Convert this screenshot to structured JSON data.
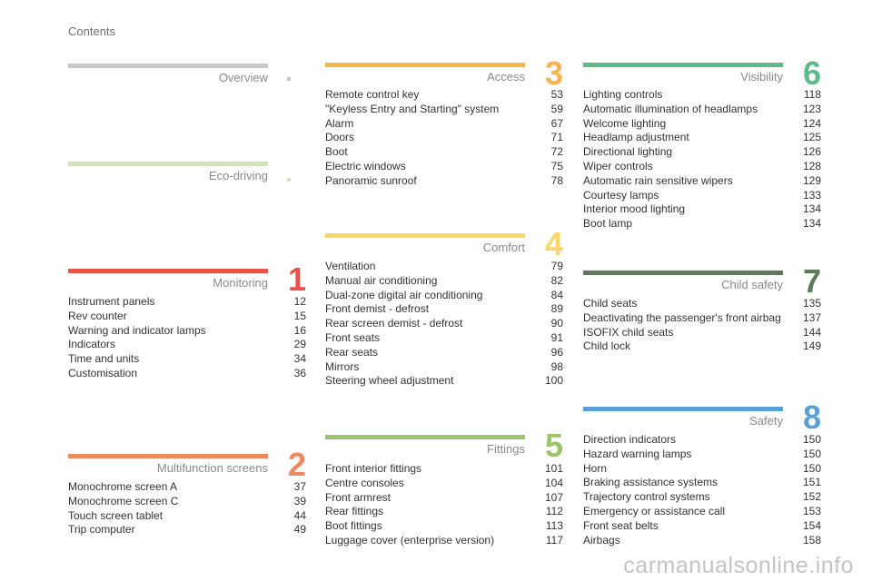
{
  "header": {
    "title": "Contents"
  },
  "sections": [
    {
      "id": "overview",
      "title": "Overview",
      "number": "",
      "color": "#c8c8c8",
      "items": []
    },
    {
      "id": "eco",
      "title": "Eco-driving",
      "number": "",
      "color": "#cfe3b8",
      "items": []
    },
    {
      "id": "monitoring",
      "title": "Monitoring",
      "number": "1",
      "color": "#e8524a",
      "items": [
        {
          "label": "Instrument panels",
          "page": "12"
        },
        {
          "label": "Rev counter",
          "page": "15"
        },
        {
          "label": "Warning and indicator lamps",
          "page": "16"
        },
        {
          "label": "Indicators",
          "page": "29"
        },
        {
          "label": "Time and units",
          "page": "34"
        },
        {
          "label": "Customisation",
          "page": "36"
        }
      ]
    },
    {
      "id": "multifunction",
      "title": "Multifunction screens",
      "number": "2",
      "color": "#ef8a5e",
      "items": [
        {
          "label": "Monochrome screen A",
          "page": "37"
        },
        {
          "label": "Monochrome screen C",
          "page": "39"
        },
        {
          "label": "Touch screen tablet",
          "page": "44"
        },
        {
          "label": "Trip computer",
          "page": "49"
        }
      ]
    },
    {
      "id": "access",
      "title": "Access",
      "number": "3",
      "color": "#f7b44e",
      "items": [
        {
          "label": "Remote control key",
          "page": "53"
        },
        {
          "label": "\"Keyless Entry and Starting\" system",
          "page": "59"
        },
        {
          "label": "Alarm",
          "page": "67"
        },
        {
          "label": "Doors",
          "page": "71"
        },
        {
          "label": "Boot",
          "page": "72"
        },
        {
          "label": "Electric windows",
          "page": "75"
        },
        {
          "label": "Panoramic sunroof",
          "page": "78"
        }
      ]
    },
    {
      "id": "comfort",
      "title": "Comfort",
      "number": "4",
      "color": "#f9d66a",
      "items": [
        {
          "label": "Ventilation",
          "page": "79"
        },
        {
          "label": "Manual air conditioning",
          "page": "82"
        },
        {
          "label": "Dual-zone digital air conditioning",
          "page": "84"
        },
        {
          "label": "Front demist - defrost",
          "page": "89"
        },
        {
          "label": "Rear screen demist - defrost",
          "page": "90"
        },
        {
          "label": "Front seats",
          "page": "91"
        },
        {
          "label": "Rear seats",
          "page": "96"
        },
        {
          "label": "Mirrors",
          "page": "98"
        },
        {
          "label": "Steering wheel adjustment",
          "page": "100"
        }
      ]
    },
    {
      "id": "fittings",
      "title": "Fittings",
      "number": "5",
      "color": "#9cc46a",
      "items": [
        {
          "label": "Front interior fittings",
          "page": "101"
        },
        {
          "label": "Centre consoles",
          "page": "104"
        },
        {
          "label": "Front armrest",
          "page": "107"
        },
        {
          "label": "Rear fittings",
          "page": "112"
        },
        {
          "label": "Boot fittings",
          "page": "113"
        },
        {
          "label": "Luggage cover (enterprise version)",
          "page": "117"
        }
      ]
    },
    {
      "id": "visibility",
      "title": "Visibility",
      "number": "6",
      "color": "#5dbb8a",
      "items": [
        {
          "label": "Lighting controls",
          "page": "118"
        },
        {
          "label": "Automatic illumination of headlamps",
          "page": "123"
        },
        {
          "label": "Welcome lighting",
          "page": "124"
        },
        {
          "label": "Headlamp adjustment",
          "page": "125"
        },
        {
          "label": "Directional lighting",
          "page": "126"
        },
        {
          "label": "Wiper controls",
          "page": "128"
        },
        {
          "label": "Automatic rain sensitive wipers",
          "page": "129"
        },
        {
          "label": "Courtesy lamps",
          "page": "133"
        },
        {
          "label": "Interior mood lighting",
          "page": "134"
        },
        {
          "label": "Boot lamp",
          "page": "134"
        }
      ]
    },
    {
      "id": "child",
      "title": "Child safety",
      "number": "7",
      "color": "#5e7a5a",
      "items": [
        {
          "label": "Child seats",
          "page": "135"
        },
        {
          "label": "Deactivating the passenger's front airbag",
          "page": "137"
        },
        {
          "label": "ISOFIX child seats",
          "page": "144"
        },
        {
          "label": "Child lock",
          "page": "149"
        }
      ]
    },
    {
      "id": "safety",
      "title": "Safety",
      "number": "8",
      "color": "#5aa0d8",
      "items": [
        {
          "label": "Direction indicators",
          "page": "150"
        },
        {
          "label": "Hazard warning lamps",
          "page": "150"
        },
        {
          "label": "Horn",
          "page": "150"
        },
        {
          "label": "Braking assistance systems",
          "page": "151"
        },
        {
          "label": "Trajectory control systems",
          "page": "152"
        },
        {
          "label": "Emergency or assistance call",
          "page": "153"
        },
        {
          "label": "Front seat belts",
          "page": "154"
        },
        {
          "label": "Airbags",
          "page": "158"
        }
      ]
    }
  ],
  "watermark": "carmanualsonline.info"
}
